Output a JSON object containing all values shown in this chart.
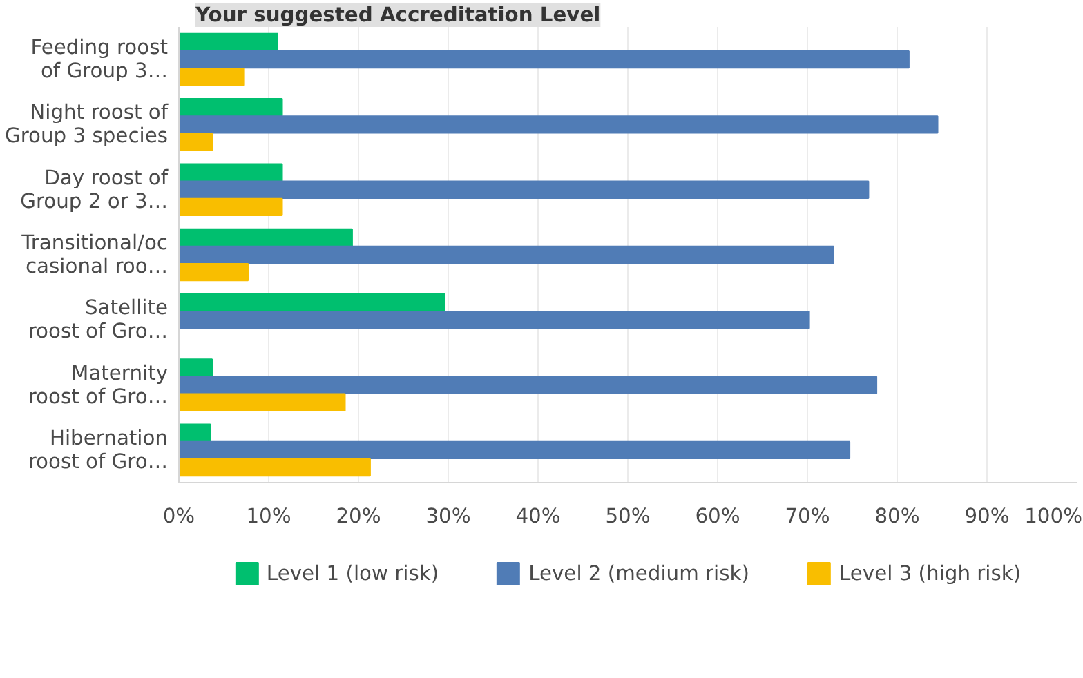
{
  "chart_data": {
    "type": "bar",
    "orientation": "horizontal",
    "title": "Your suggested Accreditation Level",
    "categories": [
      "Feeding roost\nof Group 3…",
      "Night roost of\nGroup 3 species",
      "Day roost of\nGroup 2 or 3…",
      "Transitional/oc\ncasional roo…",
      "Satellite\nroost of Gro…",
      "Maternity\nroost of Gro…",
      "Hibernation\nroost of Gro…"
    ],
    "series": [
      {
        "name": "Level 1 (low risk)",
        "color": "#00bf6f",
        "values": [
          11,
          11.5,
          11.5,
          19.3,
          29.6,
          3.7,
          3.5
        ]
      },
      {
        "name": "Level 2 (medium risk)",
        "color": "#507cb6",
        "values": [
          81.3,
          84.5,
          76.8,
          72.9,
          70.2,
          77.7,
          74.7
        ]
      },
      {
        "name": "Level 3 (high risk)",
        "color": "#f9be00",
        "values": [
          7.2,
          3.7,
          11.5,
          7.7,
          0,
          18.5,
          21.3
        ]
      }
    ],
    "xlim": [
      0,
      100
    ],
    "xticks": [
      {
        "value": 0,
        "label": "0%"
      },
      {
        "value": 10,
        "label": "10%"
      },
      {
        "value": 20,
        "label": "20%"
      },
      {
        "value": 30,
        "label": "30%"
      },
      {
        "value": 40,
        "label": "40%"
      },
      {
        "value": 50,
        "label": "50%"
      },
      {
        "value": 60,
        "label": "60%"
      },
      {
        "value": 70,
        "label": "70%"
      },
      {
        "value": 80,
        "label": "80%"
      },
      {
        "value": 90,
        "label": "90%"
      },
      {
        "value": 100,
        "label": "100%"
      }
    ],
    "grid": "x",
    "legend": "bottom"
  }
}
